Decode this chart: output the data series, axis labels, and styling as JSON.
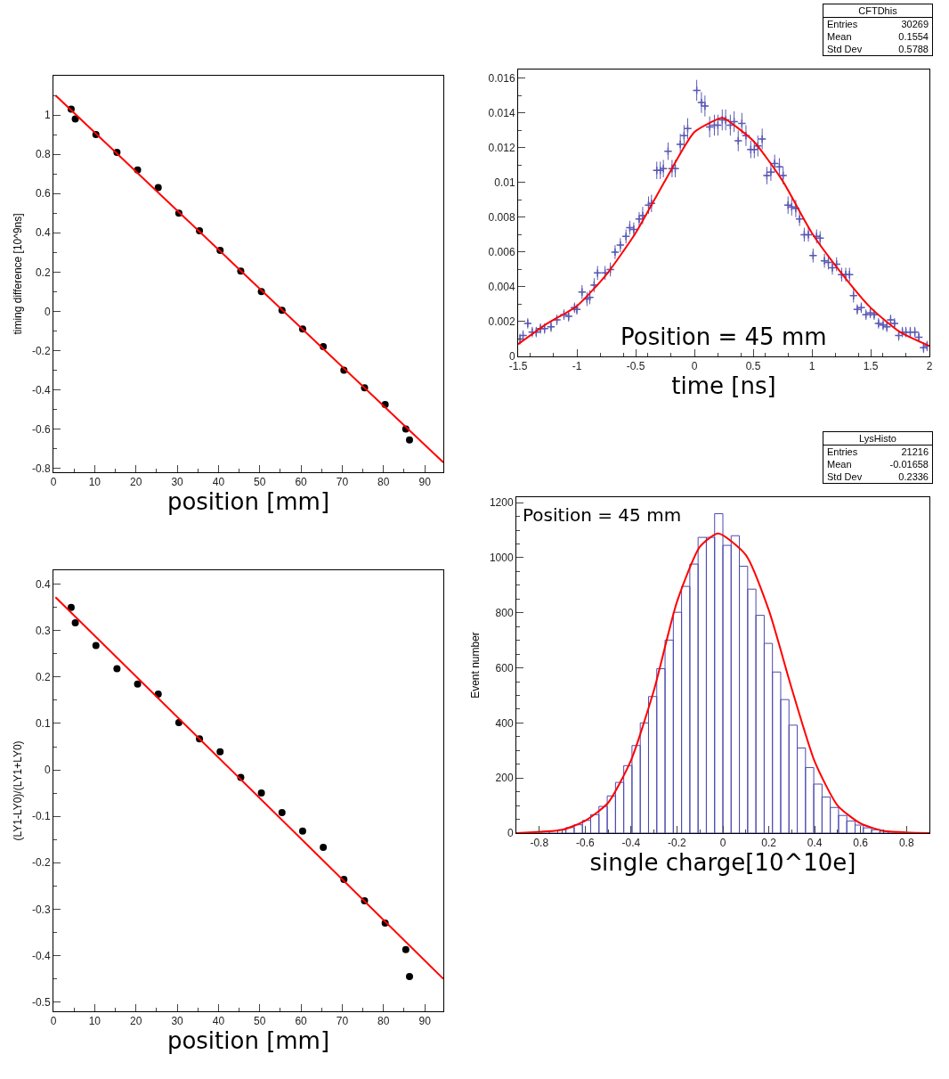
{
  "chart_data": [
    {
      "type": "scatter",
      "xlabel": "position [mm]",
      "ylabel": "timing difference [10^9ns]",
      "xlim": [
        0,
        94.5
      ],
      "xticks": [
        0,
        10,
        20,
        30,
        40,
        50,
        60,
        70,
        80,
        90
      ],
      "ylim": [
        -0.82,
        1.2
      ],
      "yticks": [
        -0.8,
        -0.6,
        -0.4,
        -0.2,
        0,
        0.2,
        0.4,
        0.6,
        0.8,
        1
      ],
      "series": [
        {
          "type": "scatter",
          "marker": "circle",
          "color": "#000000",
          "x": [
            4.3,
            5.3,
            10.3,
            15.4,
            20.4,
            25.4,
            30.4,
            35.4,
            40.4,
            45.4,
            50.4,
            55.4,
            60.4,
            65.4,
            70.4,
            75.4,
            80.4,
            85.4,
            86.3
          ],
          "values": [
            1.03,
            0.98,
            0.9,
            0.81,
            0.72,
            0.63,
            0.5,
            0.41,
            0.31,
            0.205,
            0.1,
            0.005,
            -0.09,
            -0.18,
            -0.3,
            -0.39,
            -0.475,
            -0.6,
            -0.655
          ]
        },
        {
          "type": "line",
          "color": "#ff0000",
          "x": [
            0.5,
            94.5
          ],
          "values": [
            1.1,
            -0.77
          ]
        }
      ]
    },
    {
      "type": "scatter",
      "xlabel": "time [ns]",
      "xlim": [
        -1.5,
        2
      ],
      "xticks": [
        -1.5,
        -1,
        -0.5,
        0,
        0.5,
        1,
        1.5,
        2
      ],
      "ylim": [
        0,
        0.0165
      ],
      "yticks": [
        0,
        0.002,
        0.004,
        0.006,
        0.008,
        0.01,
        0.012,
        0.014,
        0.016
      ],
      "annotations": [
        "CFTDhis",
        "Entries",
        "30269",
        "Mean",
        "0.1554",
        "Std Dev",
        "0.5788",
        "Position = 45 mm"
      ],
      "series": [
        {
          "type": "scatter",
          "marker": "cross",
          "color": "#5a5ab4",
          "x": [
            -1.484,
            -1.458,
            -1.418,
            -1.38,
            -1.346,
            -1.31,
            -1.275,
            -1.22,
            -1.17,
            -1.11,
            -1.07,
            -1.02,
            -1.0,
            -0.956,
            -0.914,
            -0.89,
            -0.853,
            -0.824,
            -0.76,
            -0.715,
            -0.675,
            -0.63,
            -0.582,
            -0.55,
            -0.516,
            -0.47,
            -0.44,
            -0.39,
            -0.365,
            -0.32,
            -0.29,
            -0.264,
            -0.224,
            -0.19,
            -0.163,
            -0.12,
            -0.088,
            -0.057,
            0.02,
            0.06,
            0.09,
            0.13,
            0.17,
            0.2,
            0.237,
            0.266,
            0.306,
            0.338,
            0.373,
            0.404,
            0.439,
            0.48,
            0.51,
            0.54,
            0.577,
            0.617,
            0.651,
            0.683,
            0.723,
            0.755,
            0.797,
            0.828,
            0.863,
            0.895,
            0.935,
            0.97,
            1.01,
            1.04,
            1.07,
            1.107,
            1.14,
            1.174,
            1.21,
            1.253,
            1.288,
            1.32,
            1.354,
            1.386,
            1.42,
            1.46,
            1.497,
            1.53,
            1.567,
            1.606,
            1.638,
            1.67,
            1.703,
            1.739,
            1.77,
            1.8,
            1.837,
            1.876,
            1.91,
            1.95,
            1.98
          ],
          "values": [
            0.001,
            0.0012,
            0.0019,
            0.0014,
            0.0014,
            0.0016,
            0.0016,
            0.0017,
            0.0021,
            0.0024,
            0.0023,
            0.0028,
            0.0027,
            0.0037,
            0.0033,
            0.0034,
            0.0041,
            0.0048,
            0.0048,
            0.005,
            0.006,
            0.0064,
            0.0069,
            0.0074,
            0.0073,
            0.0079,
            0.0081,
            0.0087,
            0.0088,
            0.0107,
            0.0107,
            0.0108,
            0.0118,
            0.0108,
            0.0108,
            0.0122,
            0.0127,
            0.0131,
            0.0153,
            0.0146,
            0.0144,
            0.0132,
            0.0133,
            0.0133,
            0.0136,
            0.0136,
            0.0133,
            0.0135,
            0.0124,
            0.0134,
            0.0127,
            0.0119,
            0.0119,
            0.0121,
            0.0125,
            0.0104,
            0.0106,
            0.0111,
            0.0109,
            0.0104,
            0.0087,
            0.0086,
            0.0085,
            0.0079,
            0.007,
            0.007,
            0.0058,
            0.0069,
            0.0068,
            0.0055,
            0.0054,
            0.0051,
            0.0053,
            0.0047,
            0.0047,
            0.0047,
            0.0035,
            0.0027,
            0.0028,
            0.0024,
            0.0025,
            0.0024,
            0.0019,
            0.0018,
            0.0017,
            0.0021,
            0.0019,
            0.0012,
            0.0014,
            0.0014,
            0.0014,
            0.0014,
            0.0011,
            0.0005,
            0.0006
          ],
          "errors": [
            0.0003,
            0.0003,
            0.0003,
            0.0003,
            0.0003,
            0.0003,
            0.0003,
            0.0003,
            0.0003,
            0.0003,
            0.0003,
            0.0003,
            0.0003,
            0.0004,
            0.0004,
            0.0004,
            0.0004,
            0.0004,
            0.0004,
            0.0004,
            0.0004,
            0.0004,
            0.0004,
            0.0004,
            0.0004,
            0.0004,
            0.0005,
            0.0005,
            0.0005,
            0.0005,
            0.0005,
            0.0005,
            0.0005,
            0.0005,
            0.0005,
            0.0006,
            0.0006,
            0.0006,
            0.0006,
            0.0006,
            0.0006,
            0.0006,
            0.0006,
            0.0006,
            0.0006,
            0.0006,
            0.0006,
            0.0006,
            0.0006,
            0.0006,
            0.0006,
            0.0005,
            0.0005,
            0.0006,
            0.0006,
            0.0005,
            0.0005,
            0.0005,
            0.0005,
            0.0005,
            0.0005,
            0.0005,
            0.0005,
            0.0004,
            0.0004,
            0.0004,
            0.0004,
            0.0004,
            0.0004,
            0.0004,
            0.0004,
            0.0004,
            0.0004,
            0.0004,
            0.0004,
            0.0004,
            0.0004,
            0.0003,
            0.0003,
            0.0003,
            0.0003,
            0.0003,
            0.0003,
            0.0003,
            0.0003,
            0.0003,
            0.0003,
            0.0003,
            0.0003,
            0.0003,
            0.0003,
            0.0003,
            0.0003,
            0.0003,
            0.0003
          ],
          "xerrors": [
            0.0175,
            0.0175,
            0.0175,
            0.0175,
            0.0175,
            0.0175,
            0.0175,
            0.0175,
            0.0175,
            0.0175,
            0.0175,
            0.0175,
            0.0175,
            0.0175,
            0.0175,
            0.0175,
            0.0175,
            0.0175,
            0.0175,
            0.0175,
            0.0175,
            0.0175,
            0.0175,
            0.0175,
            0.0175,
            0.0175,
            0.0175,
            0.0175,
            0.0175,
            0.0175,
            0.0175,
            0.0175,
            0.0175,
            0.0175,
            0.0175,
            0.0175,
            0.0175,
            0.0175,
            0.0175,
            0.0175,
            0.0175,
            0.0175,
            0.0175,
            0.0175,
            0.0175,
            0.0175,
            0.0175,
            0.0175,
            0.0175,
            0.0175,
            0.0175,
            0.0175,
            0.0175,
            0.0175,
            0.0175,
            0.0175,
            0.0175,
            0.0175,
            0.0175,
            0.0175,
            0.0175,
            0.0175,
            0.0175,
            0.0175,
            0.0175,
            0.0175,
            0.0175,
            0.0175,
            0.0175,
            0.0175,
            0.0175,
            0.0175,
            0.0175,
            0.0175,
            0.0175,
            0.0175,
            0.0175,
            0.0175,
            0.0175,
            0.0175,
            0.0175,
            0.0175,
            0.0175,
            0.0175,
            0.0175,
            0.0175,
            0.0175,
            0.0175,
            0.0175,
            0.0175,
            0.0175,
            0.0175,
            0.0175,
            0.0175,
            0.0175
          ]
        },
        {
          "type": "line",
          "color": "#ff0000",
          "x": [
            -1.5,
            -1.25,
            -1,
            -0.75,
            -0.5,
            -0.25,
            0,
            0.22,
            0.25,
            0.5,
            0.75,
            1,
            1.25,
            1.5,
            1.75,
            2
          ],
          "values": [
            0.0007,
            0.0019,
            0.0029,
            0.0047,
            0.0071,
            0.0101,
            0.0129,
            0.0137,
            0.0137,
            0.0124,
            0.0101,
            0.0071,
            0.0048,
            0.0028,
            0.0014,
            0.0006
          ]
        }
      ]
    },
    {
      "type": "scatter",
      "xlabel": "position [mm]",
      "ylabel": "(LY1-LY0)/(LY1+LY0)",
      "xlim": [
        0,
        94.5
      ],
      "xticks": [
        0,
        10,
        20,
        30,
        40,
        50,
        60,
        70,
        80,
        90
      ],
      "ylim": [
        -0.52,
        0.43
      ],
      "yticks": [
        -0.5,
        -0.4,
        -0.3,
        -0.2,
        -0.1,
        0,
        0.1,
        0.2,
        0.3,
        0.4
      ],
      "series": [
        {
          "type": "scatter",
          "marker": "circle",
          "color": "#000000",
          "x": [
            4.3,
            5.3,
            10.3,
            15.4,
            20.4,
            25.4,
            30.4,
            35.4,
            40.4,
            45.4,
            50.4,
            55.4,
            60.4,
            65.4,
            70.4,
            75.4,
            80.4,
            85.4,
            86.3
          ],
          "values": [
            0.35,
            0.317,
            0.268,
            0.218,
            0.185,
            0.163,
            0.102,
            0.067,
            0.039,
            -0.016,
            -0.05,
            -0.092,
            -0.132,
            -0.167,
            -0.236,
            -0.282,
            -0.33,
            -0.387,
            -0.445
          ]
        },
        {
          "type": "line",
          "color": "#ff0000",
          "x": [
            0.5,
            94.5
          ],
          "values": [
            0.372,
            -0.45
          ]
        }
      ]
    },
    {
      "type": "histogram",
      "xlabel": "single charge[10^10e]",
      "ylabel": "Event number",
      "xlim": [
        -0.9,
        0.9
      ],
      "xticks": [
        -0.8,
        -0.6,
        -0.4,
        -0.2,
        0,
        0.2,
        0.4,
        0.6,
        0.8
      ],
      "ylim": [
        0,
        1220
      ],
      "yticks": [
        0,
        200,
        400,
        600,
        800,
        1000,
        1200
      ],
      "color": "#4b4bb0",
      "annotations": [
        "LysHisto",
        "Entries",
        "21216",
        "Mean",
        "-0.01658",
        "Std Dev",
        "0.2336",
        "Position = 45 mm"
      ],
      "bins": [
        -0.9,
        -0.864,
        -0.828,
        -0.792,
        -0.756,
        -0.72,
        -0.684,
        -0.648,
        -0.612,
        -0.576,
        -0.54,
        -0.504,
        -0.468,
        -0.432,
        -0.396,
        -0.36,
        -0.324,
        -0.288,
        -0.252,
        -0.216,
        -0.18,
        -0.144,
        -0.108,
        -0.072,
        -0.036,
        0,
        0.036,
        0.072,
        0.108,
        0.144,
        0.18,
        0.216,
        0.252,
        0.288,
        0.324,
        0.36,
        0.396,
        0.432,
        0.468,
        0.504,
        0.54,
        0.576,
        0.612,
        0.648,
        0.684,
        0.72,
        0.756,
        0.792,
        0.828,
        0.864,
        0.9
      ],
      "values": [
        1,
        null,
        null,
        5,
        8,
        12,
        20,
        30,
        46,
        67,
        97,
        135,
        184,
        245,
        318,
        400,
        496,
        597,
        701,
        802,
        896,
        977,
        1074,
        1074,
        1160,
        1045,
        1080,
        969,
        886,
        791,
        689,
        585,
        485,
        392,
        309,
        238,
        178,
        131,
        93,
        64,
        44,
        29,
        19,
        12,
        7,
        4,
        null,
        null,
        1,
        0
      ],
      "series": [
        {
          "type": "line",
          "color": "#ff0000",
          "x": [
            -0.9,
            -0.7,
            -0.6,
            -0.5,
            -0.4,
            -0.3,
            -0.2,
            -0.1,
            -0.02,
            0.1,
            0.2,
            0.3,
            0.4,
            0.5,
            0.6,
            0.7,
            0.9
          ],
          "values": [
            0,
            12,
            45,
            110,
            265,
            520,
            840,
            1040,
            1088,
            1010,
            810,
            525,
            260,
            100,
            35,
            8,
            0
          ]
        }
      ]
    }
  ]
}
